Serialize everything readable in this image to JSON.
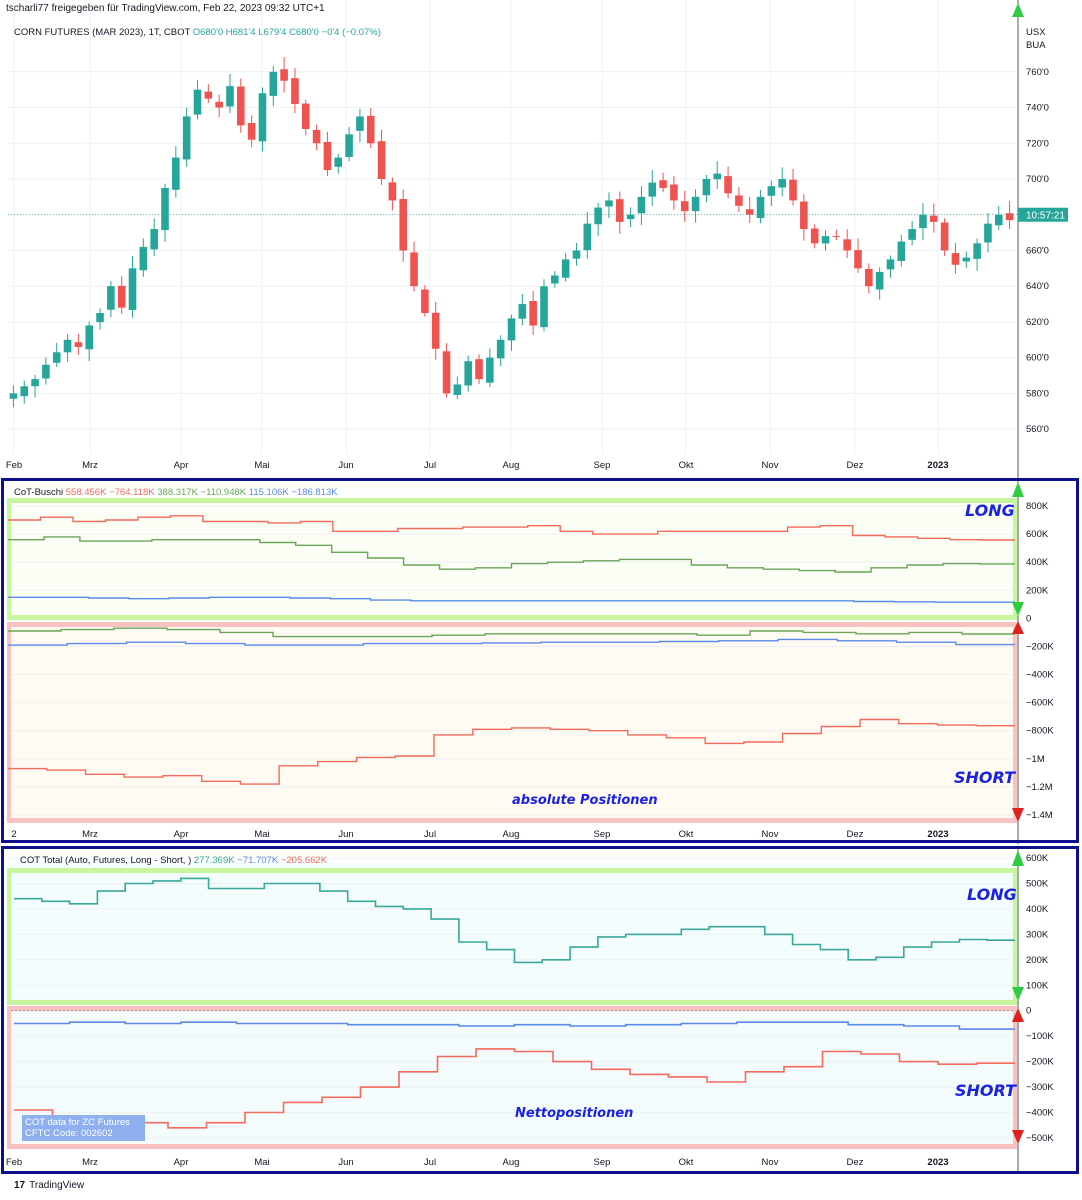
{
  "header": {
    "published": "tscharli77 freigegeben für TradingView.com, Feb 22, 2023 09:32 UTC+1",
    "symbol": "CORN FUTURES (MAR 2023), 1T, CBOT",
    "ohlc": "O680'0  H681'4  L679'4  C680'0  −0'4 (−0.07%)"
  },
  "price_axis": {
    "currency": "USX",
    "unit": "BUA",
    "ticks": [
      "760'0",
      "740'0",
      "720'0",
      "700'0",
      "680'0",
      "660'0",
      "640'0",
      "620'0",
      "600'0",
      "580'0",
      "560'0"
    ],
    "last_price_label": "10:57:21"
  },
  "time_axis": [
    "Feb",
    "Mrz",
    "Apr",
    "Mai",
    "Jun",
    "Jul",
    "Aug",
    "Sep",
    "Okt",
    "Nov",
    "Dez",
    "2023"
  ],
  "time_axis_pane2": [
    "2",
    "Mrz",
    "Apr",
    "Mai",
    "Jun",
    "Jul",
    "Aug",
    "Sep",
    "Okt",
    "Nov",
    "Dez",
    "2023"
  ],
  "colors": {
    "up": "#26a69a",
    "down": "#ef5350",
    "red_line": "#f26b5b",
    "green_line": "#6aa55a",
    "blue_line": "#5b8ae6",
    "teal_line": "#3aa79a",
    "frame": "#0d0f8f",
    "long_band": "#c7f5a0",
    "short_band": "#f8c2c2",
    "label_blue": "#1a22e0"
  },
  "pane2": {
    "title": "CoT-Buschi",
    "values": [
      "558.456K",
      "−764.118K",
      "388.317K",
      "−110.948K",
      "115.106K",
      "−186.813K"
    ],
    "axis": [
      "800K",
      "600K",
      "400K",
      "200K",
      "0",
      "−200K",
      "−400K",
      "−600K",
      "−800K",
      "−1M",
      "−1.2M",
      "−1.4M"
    ],
    "long_label": "LONG",
    "short_label": "SHORT",
    "caption": "absolute Positionen"
  },
  "pane3": {
    "title": "COT Total (Auto, Futures, Long - Short, )",
    "values": [
      "277.369K",
      "−71.707K",
      "−205.662K"
    ],
    "axis": [
      "600K",
      "500K",
      "400K",
      "300K",
      "200K",
      "100K",
      "0",
      "−100K",
      "−200K",
      "−300K",
      "−400K",
      "−500K"
    ],
    "long_label": "LONG",
    "short_label": "SHORT",
    "caption": "Nettopositionen",
    "note_line1": "COT data for ZC Futures",
    "note_line2": "CFTC Code: 002602"
  },
  "footer": {
    "logo": "17",
    "brand": "TradingView"
  },
  "chart_data": [
    {
      "type": "candlestick",
      "title": "CORN FUTURES (MAR 2023), 1T, CBOT",
      "x_labels": [
        "Feb",
        "Mrz",
        "Apr",
        "Mai",
        "Jun",
        "Jul",
        "Aug",
        "Sep",
        "Okt",
        "Nov",
        "Dez",
        "2023"
      ],
      "close": [
        580,
        584,
        588,
        596,
        603,
        610,
        606,
        618,
        625,
        640,
        628,
        650,
        662,
        672,
        695,
        712,
        735,
        750,
        745,
        740,
        752,
        730,
        722,
        748,
        760,
        755,
        742,
        728,
        720,
        705,
        712,
        725,
        735,
        720,
        700,
        688,
        660,
        640,
        625,
        605,
        580,
        585,
        598,
        588,
        600,
        610,
        622,
        630,
        618,
        640,
        646,
        655,
        660,
        675,
        684,
        688,
        676,
        680,
        690,
        698,
        695,
        688,
        682,
        690,
        700,
        703,
        692,
        685,
        680,
        690,
        696,
        700,
        688,
        672,
        664,
        668,
        668,
        660,
        650,
        640,
        648,
        655,
        665,
        672,
        680,
        676,
        660,
        652,
        656,
        664,
        675,
        680,
        677
      ],
      "ylim": [
        550,
        775
      ],
      "last": 680
    },
    {
      "type": "line",
      "title": "CoT-Buschi",
      "ylim": [
        -1400,
        800
      ],
      "series": [
        {
          "values": [
            700,
            720,
            690,
            700,
            720,
            730,
            690,
            690,
            680,
            690,
            620,
            620,
            640,
            640,
            650,
            650,
            660,
            620,
            600,
            600,
            620,
            620,
            620,
            620,
            650,
            660,
            590,
            580,
            570,
            560,
            558
          ]
        },
        {
          "values": [
            560,
            580,
            550,
            550,
            560,
            560,
            560,
            540,
            520,
            470,
            430,
            380,
            350,
            360,
            390,
            400,
            410,
            420,
            420,
            380,
            360,
            350,
            340,
            330,
            360,
            380,
            390,
            388
          ]
        },
        {
          "values": [
            150,
            150,
            145,
            140,
            145,
            150,
            150,
            145,
            140,
            130,
            125,
            125,
            125,
            125,
            125,
            125,
            125,
            125,
            125,
            125,
            125,
            120,
            118,
            115,
            115
          ]
        },
        {
          "values": [
            -1070,
            -1080,
            -1110,
            -1130,
            -1120,
            -1160,
            -1180,
            -1050,
            -1020,
            -990,
            -980,
            -830,
            -790,
            -780,
            -790,
            -800,
            -830,
            -850,
            -890,
            -880,
            -820,
            -770,
            -720,
            -750,
            -760,
            -764
          ]
        },
        {
          "values": [
            -90,
            -80,
            -70,
            -80,
            -100,
            -130,
            -130,
            -130,
            -120,
            -110,
            -110,
            -110,
            -110,
            -120,
            -90,
            -100,
            -110,
            -100,
            -111
          ]
        },
        {
          "values": [
            -190,
            -180,
            -170,
            -180,
            -190,
            -190,
            -180,
            -180,
            -175,
            -170,
            -170,
            -165,
            -160,
            -150,
            -160,
            -170,
            -187
          ]
        }
      ]
    },
    {
      "type": "line",
      "title": "COT Total (Auto, Futures, Long - Short, )",
      "ylim": [
        -600,
        600
      ],
      "series": [
        {
          "values": [
            440,
            430,
            420,
            470,
            500,
            510,
            520,
            480,
            480,
            500,
            500,
            470,
            430,
            410,
            400,
            360,
            270,
            240,
            190,
            200,
            250,
            290,
            300,
            300,
            320,
            330,
            330,
            300,
            260,
            240,
            200,
            210,
            250,
            270,
            280,
            277
          ]
        },
        {
          "values": [
            -50,
            -45,
            -50,
            -45,
            -50,
            -50,
            -55,
            -55,
            -60,
            -55,
            -60,
            -55,
            -50,
            -45,
            -45,
            -55,
            -60,
            -72
          ]
        },
        {
          "values": [
            -390,
            -430,
            -420,
            -440,
            -460,
            -440,
            -400,
            -360,
            -340,
            -300,
            -240,
            -180,
            -150,
            -160,
            -200,
            -230,
            -250,
            -260,
            -280,
            -240,
            -220,
            -160,
            -170,
            -200,
            -210,
            -206
          ]
        }
      ]
    }
  ]
}
